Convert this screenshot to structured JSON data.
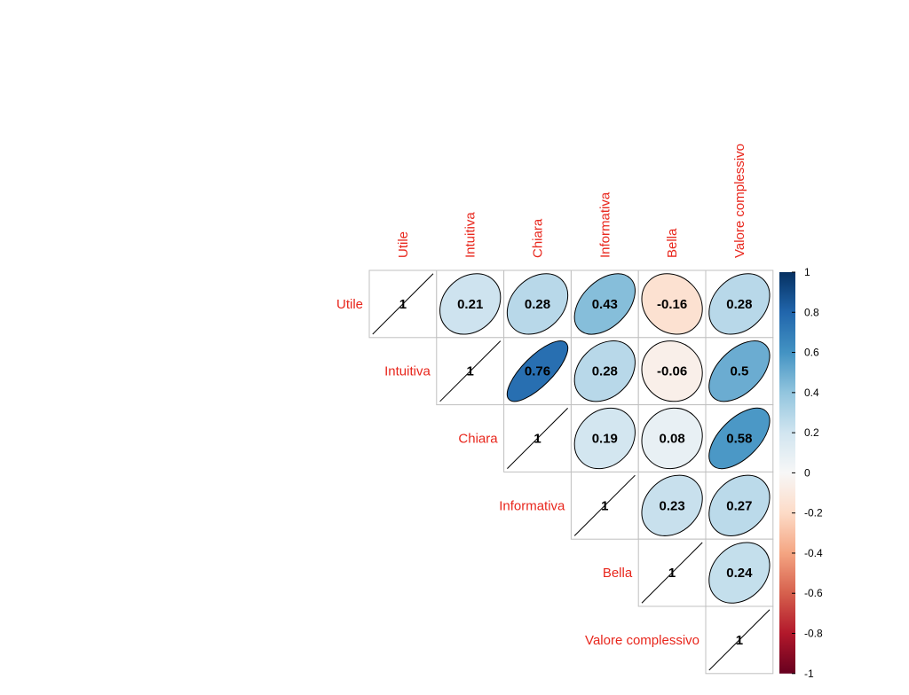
{
  "chart_data": {
    "type": "heatmap",
    "title": "",
    "variables": [
      "Utile",
      "Intuitiva",
      "Chiara",
      "Informativa",
      "Bella",
      "Valore complessivo"
    ],
    "matrix": [
      [
        1,
        0.21,
        0.28,
        0.43,
        -0.16,
        0.28
      ],
      [
        null,
        1,
        0.76,
        0.28,
        -0.06,
        0.5
      ],
      [
        null,
        null,
        1,
        0.19,
        0.08,
        0.58
      ],
      [
        null,
        null,
        null,
        1,
        0.23,
        0.27
      ],
      [
        null,
        null,
        null,
        null,
        1,
        0.24
      ],
      [
        null,
        null,
        null,
        null,
        null,
        1
      ]
    ],
    "value_labels": [
      [
        "1",
        "0.21",
        "0.28",
        "0.43",
        "-0.16",
        "0.28"
      ],
      [
        "",
        "1",
        "0.76",
        "0.28",
        "-0.06",
        "0.5"
      ],
      [
        "",
        "",
        "1",
        "0.19",
        "0.08",
        "0.58"
      ],
      [
        "",
        "",
        "",
        "1",
        "0.23",
        "0.27"
      ],
      [
        "",
        "",
        "",
        "",
        "1",
        "0.24"
      ],
      [
        "",
        "",
        "",
        "",
        "",
        "1"
      ]
    ],
    "layout": "upper-triangle",
    "method": "ellipse",
    "legend": {
      "placement": "right",
      "range": [
        -1,
        1
      ],
      "ticks": [
        "1",
        "0.8",
        "0.6",
        "0.4",
        "0.2",
        "0",
        "-0.2",
        "-0.4",
        "-0.6",
        "-0.8",
        "-1"
      ]
    },
    "colors": {
      "label": "#e8261c",
      "negative_strong": "#67001f",
      "neutral": "#f7f7f7",
      "positive_strong": "#053061",
      "grid": "#c0c0c0",
      "outline": "#000000"
    }
  }
}
